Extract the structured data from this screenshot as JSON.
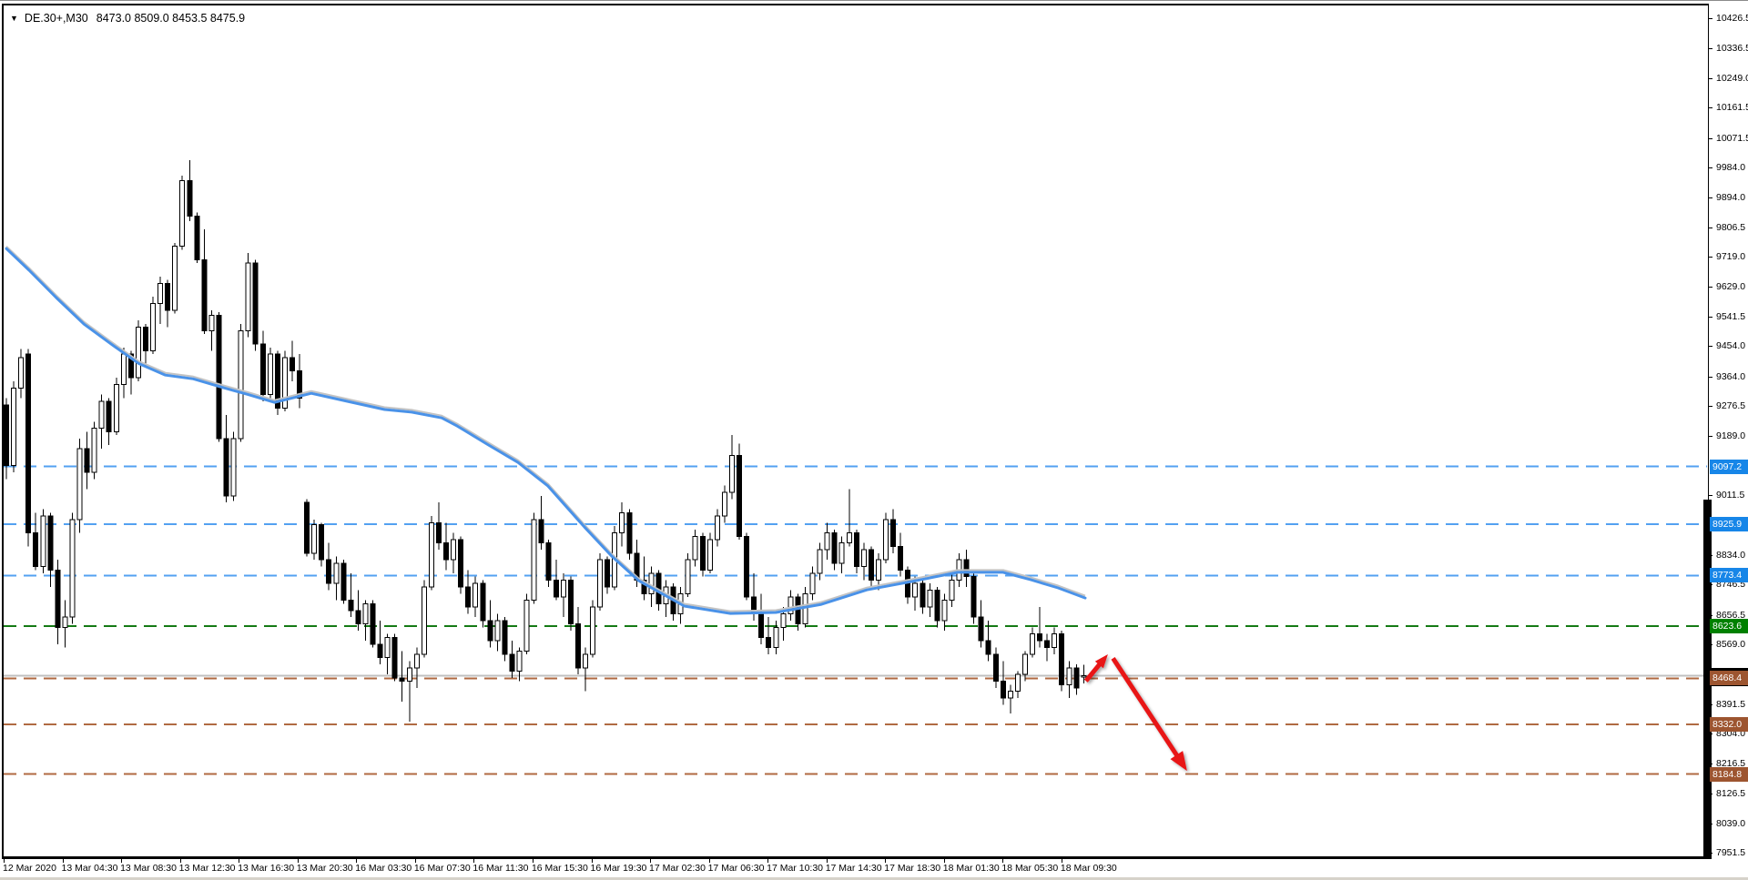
{
  "header": {
    "symbol": "DE.30+,M30",
    "ohlc": "8473.0 8509.0 8453.5 8475.9"
  },
  "chart_data": {
    "type": "candlestick",
    "symbol": "DE.30+",
    "period": "M30",
    "current_bar": {
      "open": 8473.0,
      "high": 8509.0,
      "low": 8453.5,
      "close": 8475.9
    },
    "y_axis": {
      "max": 10426.5,
      "min": 7951.5,
      "ticks": [
        10426.5,
        10336.5,
        10249.0,
        10161.5,
        10071.5,
        9984.0,
        9894.0,
        9806.5,
        9719.0,
        9629.0,
        9541.5,
        9454.0,
        9364.0,
        9276.5,
        9189.0,
        9011.5,
        8834.0,
        8746.5,
        8656.5,
        8569.0,
        8391.5,
        8304.0,
        8216.5,
        8126.5,
        8039.0,
        7951.5
      ]
    },
    "x_axis": {
      "labels": [
        "12 Mar 2020",
        "13 Mar 04:30",
        "13 Mar 08:30",
        "13 Mar 12:30",
        "13 Mar 16:30",
        "13 Mar 20:30",
        "16 Mar 03:30",
        "16 Mar 07:30",
        "16 Mar 11:30",
        "16 Mar 15:30",
        "16 Mar 19:30",
        "17 Mar 02:30",
        "17 Mar 06:30",
        "17 Mar 10:30",
        "17 Mar 14:30",
        "17 Mar 18:30",
        "18 Mar 01:30",
        "18 Mar 05:30",
        "18 Mar 09:30"
      ]
    },
    "levels": [
      {
        "price": 9097.2,
        "label": "9097.2",
        "line_color": "#53a1f1",
        "label_bg": "#1786e8"
      },
      {
        "price": 8925.9,
        "label": "8925.9",
        "line_color": "#53a1f1",
        "label_bg": "#1786e8"
      },
      {
        "price": 8773.4,
        "label": "8773.4",
        "line_color": "#53a1f1",
        "label_bg": "#1786e8"
      },
      {
        "price": 8623.6,
        "label": "8623.6",
        "line_color": "#157a15",
        "label_bg": "#008000"
      },
      {
        "price": 8468.4,
        "label": "8468.4",
        "line_color": "#b06a42",
        "label_bg": "#9d5530"
      },
      {
        "price": 8332.0,
        "label": "8332.0",
        "line_color": "#b06a42",
        "label_bg": "#9d5530"
      },
      {
        "price": 8184.8,
        "label": "8184.8",
        "line_color": "#b06a42",
        "label_bg": "#9d5530"
      }
    ],
    "current_price_line": {
      "price": 8475.9,
      "color": "#c0c0c0",
      "axis_strip_color": "#000000"
    },
    "axis_black_bar": {
      "top_price": 9000
    },
    "moving_averages": {
      "blue_color": "#4a92e8",
      "silver_color": "#c3c3c3",
      "points": [
        [
          0,
          9743
        ],
        [
          3.1,
          9679
        ],
        [
          6.8,
          9598
        ],
        [
          10.6,
          9519
        ],
        [
          14.3,
          9460
        ],
        [
          18,
          9403
        ],
        [
          21.7,
          9368
        ],
        [
          25.5,
          9357
        ],
        [
          29.2,
          9333
        ],
        [
          32.9,
          9311
        ],
        [
          36.6,
          9287
        ],
        [
          41.6,
          9314
        ],
        [
          46.6,
          9290
        ],
        [
          51.6,
          9266
        ],
        [
          55.3,
          9258
        ],
        [
          59.4,
          9241
        ],
        [
          61.5,
          9217
        ],
        [
          65.6,
          9163
        ],
        [
          69.8,
          9109
        ],
        [
          73.9,
          9039
        ],
        [
          78.9,
          8917
        ],
        [
          82.6,
          8831
        ],
        [
          86.3,
          8758
        ],
        [
          92.5,
          8683
        ],
        [
          98.8,
          8661
        ],
        [
          105,
          8664
        ],
        [
          111.2,
          8688
        ],
        [
          117.4,
          8731
        ],
        [
          123.6,
          8756
        ],
        [
          129.8,
          8783
        ],
        [
          136,
          8783
        ],
        [
          139.8,
          8761
        ],
        [
          143.5,
          8737
        ],
        [
          147.2,
          8707
        ]
      ]
    },
    "arrows": [
      {
        "name": "small-up-arrow",
        "from": [
          147.3,
          8461
        ],
        "to": [
          150.3,
          8540
        ],
        "color": "#e81218",
        "width": 5,
        "head": 15
      },
      {
        "name": "big-down-arrow",
        "from": [
          151.0,
          8528
        ],
        "to": [
          161.1,
          8194
        ],
        "color": "#e81218",
        "width": 5,
        "head": 21
      }
    ],
    "candles": [
      [
        9280,
        9300,
        9060,
        9100
      ],
      [
        9100,
        9350,
        9080,
        9330
      ],
      [
        9330,
        9445,
        9300,
        9420
      ],
      [
        9430,
        9445,
        8860,
        8900
      ],
      [
        8900,
        8960,
        8790,
        8800
      ],
      [
        8800,
        8970,
        8780,
        8950
      ],
      [
        8950,
        8960,
        8740,
        8790
      ],
      [
        8790,
        8820,
        8570,
        8620
      ],
      [
        8620,
        8700,
        8560,
        8650
      ],
      [
        8650,
        8960,
        8630,
        8940
      ],
      [
        8940,
        9180,
        8900,
        9150
      ],
      [
        9150,
        9200,
        9030,
        9080
      ],
      [
        9080,
        9230,
        9060,
        9210
      ],
      [
        9210,
        9310,
        9150,
        9290
      ],
      [
        9290,
        9300,
        9160,
        9200
      ],
      [
        9200,
        9360,
        9190,
        9340
      ],
      [
        9340,
        9450,
        9300,
        9430
      ],
      [
        9430,
        9440,
        9310,
        9360
      ],
      [
        9360,
        9530,
        9350,
        9510
      ],
      [
        9510,
        9520,
        9390,
        9440
      ],
      [
        9440,
        9600,
        9430,
        9580
      ],
      [
        9580,
        9660,
        9520,
        9640
      ],
      [
        9640,
        9650,
        9510,
        9560
      ],
      [
        9560,
        9760,
        9550,
        9750
      ],
      [
        9750,
        9960,
        9740,
        9945
      ],
      [
        9945,
        10005,
        9825,
        9840
      ],
      [
        9840,
        9850,
        9700,
        9710
      ],
      [
        9710,
        9800,
        9490,
        9500
      ],
      [
        9500,
        9560,
        9440,
        9545
      ],
      [
        9545,
        9555,
        9170,
        9180
      ],
      [
        9180,
        9250,
        8990,
        9010
      ],
      [
        9010,
        9200,
        8995,
        9180
      ],
      [
        9180,
        9520,
        9170,
        9500
      ],
      [
        9500,
        9730,
        9480,
        9700
      ],
      [
        9700,
        9710,
        9440,
        9460
      ],
      [
        9460,
        9500,
        9290,
        9310
      ],
      [
        9310,
        9450,
        9300,
        9430
      ],
      [
        9430,
        9440,
        9250,
        9270
      ],
      [
        9270,
        9440,
        9260,
        9420
      ],
      [
        9420,
        9470,
        9350,
        9380
      ],
      [
        9380,
        9430,
        9270,
        9300
      ],
      [
        8990,
        9000,
        8830,
        8840
      ],
      [
        8840,
        8940,
        8820,
        8925
      ],
      [
        8925,
        8930,
        8800,
        8820
      ],
      [
        8820,
        8870,
        8730,
        8750
      ],
      [
        8750,
        8830,
        8700,
        8810
      ],
      [
        8810,
        8820,
        8690,
        8700
      ],
      [
        8700,
        8780,
        8650,
        8670
      ],
      [
        8670,
        8730,
        8610,
        8630
      ],
      [
        8630,
        8700,
        8580,
        8690
      ],
      [
        8690,
        8700,
        8560,
        8570
      ],
      [
        8570,
        8640,
        8510,
        8530
      ],
      [
        8530,
        8600,
        8480,
        8590
      ],
      [
        8590,
        8600,
        8460,
        8470
      ],
      [
        8470,
        8550,
        8400,
        8460
      ],
      [
        8460,
        8520,
        8340,
        8500
      ],
      [
        8500,
        8560,
        8440,
        8540
      ],
      [
        8540,
        8760,
        8530,
        8740
      ],
      [
        8740,
        8950,
        8730,
        8930
      ],
      [
        8930,
        8990,
        8850,
        8870
      ],
      [
        8870,
        8930,
        8790,
        8820
      ],
      [
        8820,
        8900,
        8780,
        8880
      ],
      [
        8880,
        8890,
        8720,
        8740
      ],
      [
        8740,
        8790,
        8660,
        8680
      ],
      [
        8680,
        8770,
        8650,
        8750
      ],
      [
        8750,
        8760,
        8620,
        8640
      ],
      [
        8640,
        8700,
        8560,
        8580
      ],
      [
        8580,
        8660,
        8550,
        8640
      ],
      [
        8640,
        8650,
        8520,
        8540
      ],
      [
        8540,
        8580,
        8470,
        8490
      ],
      [
        8490,
        8560,
        8460,
        8550
      ],
      [
        8550,
        8720,
        8540,
        8700
      ],
      [
        8700,
        8960,
        8690,
        8940
      ],
      [
        8940,
        9010,
        8850,
        8870
      ],
      [
        8870,
        8880,
        8740,
        8760
      ],
      [
        8760,
        8820,
        8700,
        8710
      ],
      [
        8710,
        8780,
        8650,
        8760
      ],
      [
        8760,
        8770,
        8610,
        8630
      ],
      [
        8630,
        8680,
        8480,
        8500
      ],
      [
        8500,
        8560,
        8430,
        8540
      ],
      [
        8540,
        8700,
        8530,
        8680
      ],
      [
        8680,
        8840,
        8670,
        8820
      ],
      [
        8820,
        8830,
        8720,
        8740
      ],
      [
        8740,
        8920,
        8730,
        8900
      ],
      [
        8900,
        8990,
        8860,
        8960
      ],
      [
        8960,
        8970,
        8820,
        8840
      ],
      [
        8840,
        8880,
        8740,
        8760
      ],
      [
        8760,
        8830,
        8700,
        8720
      ],
      [
        8720,
        8800,
        8680,
        8780
      ],
      [
        8780,
        8790,
        8670,
        8690
      ],
      [
        8690,
        8760,
        8650,
        8740
      ],
      [
        8740,
        8750,
        8640,
        8660
      ],
      [
        8660,
        8740,
        8630,
        8720
      ],
      [
        8720,
        8840,
        8710,
        8820
      ],
      [
        8820,
        8910,
        8800,
        8890
      ],
      [
        8890,
        8900,
        8770,
        8790
      ],
      [
        8790,
        8900,
        8780,
        8880
      ],
      [
        8880,
        8970,
        8860,
        8950
      ],
      [
        8950,
        9040,
        8930,
        9020
      ],
      [
        9020,
        9190,
        9000,
        9130
      ],
      [
        9130,
        9165,
        8880,
        8890
      ],
      [
        8890,
        8900,
        8700,
        8710
      ],
      [
        8710,
        8780,
        8640,
        8660
      ],
      [
        8660,
        8720,
        8570,
        8590
      ],
      [
        8590,
        8650,
        8540,
        8560
      ],
      [
        8560,
        8640,
        8540,
        8620
      ],
      [
        8620,
        8680,
        8580,
        8660
      ],
      [
        8660,
        8730,
        8640,
        8710
      ],
      [
        8710,
        8720,
        8610,
        8630
      ],
      [
        8630,
        8740,
        8620,
        8720
      ],
      [
        8720,
        8800,
        8700,
        8780
      ],
      [
        8780,
        8870,
        8760,
        8850
      ],
      [
        8850,
        8930,
        8820,
        8900
      ],
      [
        8900,
        8910,
        8790,
        8810
      ],
      [
        8810,
        8890,
        8780,
        8870
      ],
      [
        8870,
        9030,
        8860,
        8900
      ],
      [
        8900,
        8910,
        8780,
        8800
      ],
      [
        8800,
        8870,
        8760,
        8850
      ],
      [
        8850,
        8860,
        8740,
        8760
      ],
      [
        8760,
        8840,
        8730,
        8820
      ],
      [
        8820,
        8960,
        8810,
        8940
      ],
      [
        8940,
        8970,
        8840,
        8860
      ],
      [
        8860,
        8900,
        8770,
        8790
      ],
      [
        8790,
        8800,
        8690,
        8710
      ],
      [
        8710,
        8770,
        8670,
        8750
      ],
      [
        8750,
        8760,
        8660,
        8680
      ],
      [
        8680,
        8750,
        8650,
        8730
      ],
      [
        8730,
        8740,
        8620,
        8640
      ],
      [
        8640,
        8720,
        8610,
        8700
      ],
      [
        8700,
        8780,
        8680,
        8760
      ],
      [
        8760,
        8840,
        8740,
        8820
      ],
      [
        8820,
        8850,
        8740,
        8770
      ],
      [
        8770,
        8780,
        8630,
        8650
      ],
      [
        8650,
        8700,
        8560,
        8580
      ],
      [
        8580,
        8640,
        8520,
        8540
      ],
      [
        8540,
        8560,
        8440,
        8460
      ],
      [
        8460,
        8520,
        8390,
        8410
      ],
      [
        8410,
        8450,
        8365,
        8430
      ],
      [
        8430,
        8490,
        8410,
        8480
      ],
      [
        8480,
        8550,
        8460,
        8540
      ],
      [
        8540,
        8620,
        8530,
        8600
      ],
      [
        8600,
        8680,
        8560,
        8580
      ],
      [
        8580,
        8600,
        8520,
        8560
      ],
      [
        8560,
        8620,
        8540,
        8600
      ],
      [
        8600,
        8610,
        8430,
        8450
      ],
      [
        8450,
        8520,
        8410,
        8500
      ],
      [
        8500,
        8510,
        8420,
        8440
      ],
      [
        8473,
        8509,
        8453.5,
        8475.9
      ]
    ]
  }
}
